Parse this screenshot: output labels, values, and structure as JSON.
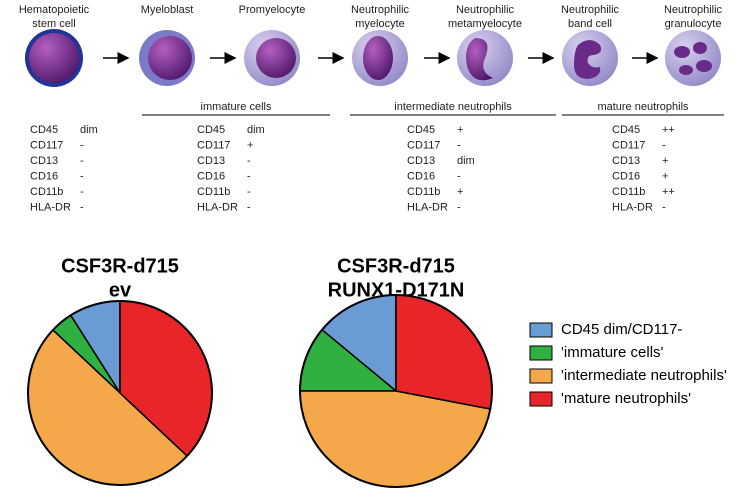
{
  "diagram": {
    "stages": [
      [
        "Hematopoietic",
        "stem cell"
      ],
      [
        "Myeloblast"
      ],
      [
        "Promyelocyte"
      ],
      [
        "Neutrophilic",
        "myelocyte"
      ],
      [
        "Neutrophilic",
        "metamyelocyte"
      ],
      [
        "Neutrophilic",
        "band cell"
      ],
      [
        "Neutrophilic",
        "granulocyte"
      ]
    ],
    "groups": [
      "immature cells",
      "intermediate neutrophils",
      "mature neutrophils"
    ],
    "markers": [
      [
        [
          "CD45",
          "dim"
        ],
        [
          "CD117",
          "-"
        ],
        [
          "CD13",
          "-"
        ],
        [
          "CD16",
          "-"
        ],
        [
          "CD11b",
          "-"
        ],
        [
          "HLA-DR",
          "-"
        ]
      ],
      [
        [
          "CD45",
          "dim"
        ],
        [
          "CD117",
          "+"
        ],
        [
          "CD13",
          "-"
        ],
        [
          "CD16",
          "-"
        ],
        [
          "CD11b",
          "-"
        ],
        [
          "HLA-DR",
          "-"
        ]
      ],
      [
        [
          "CD45",
          "+"
        ],
        [
          "CD117",
          "-"
        ],
        [
          "CD13",
          "dim"
        ],
        [
          "CD16",
          "-"
        ],
        [
          "CD11b",
          "+"
        ],
        [
          "HLA-DR",
          "-"
        ]
      ],
      [
        [
          "CD45",
          "++"
        ],
        [
          "CD117",
          "-"
        ],
        [
          "CD13",
          "+"
        ],
        [
          "CD16",
          "+"
        ],
        [
          "CD11b",
          "++"
        ],
        [
          "HLA-DR",
          "-"
        ]
      ]
    ]
  },
  "chart_data": {
    "type": "pie",
    "categories": [
      "CD45 dim/CD117-",
      "'immature cells'",
      "'intermediate neutrophils'",
      "'mature neutrophils'"
    ],
    "colors": [
      "#6a9bd4",
      "#2fb040",
      "#f5a84a",
      "#e8262a"
    ],
    "series": [
      {
        "name": [
          "CSF3R-d715",
          "ev"
        ],
        "values": [
          9,
          4,
          50,
          37
        ]
      },
      {
        "name": [
          "CSF3R-d715",
          "RUNX1-D171N"
        ],
        "values": [
          14,
          11,
          47,
          28
        ]
      }
    ]
  }
}
